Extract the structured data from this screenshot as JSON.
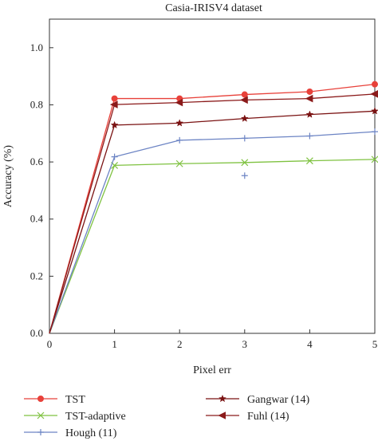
{
  "chart_data": {
    "type": "line",
    "title": "Casia-IRISV4 dataset",
    "xlabel": "Pixel err",
    "ylabel": "Accuracy (%)",
    "xlim": [
      0,
      5
    ],
    "ylim": [
      0,
      1.1
    ],
    "x_ticks": [
      "0",
      "1",
      "2",
      "3",
      "4",
      "5"
    ],
    "y_ticks": [
      "0.0",
      "0.2",
      "0.4",
      "0.6",
      "0.8",
      "1.0"
    ],
    "grid": false,
    "legend_position": "bottom",
    "x": [
      0,
      1,
      2,
      3,
      4,
      5
    ],
    "series": [
      {
        "name": "TST",
        "color": "#e8413a",
        "marker": "circle",
        "values": [
          0,
          0.822,
          0.822,
          0.836,
          0.846,
          0.872
        ]
      },
      {
        "name": "TST-adaptive",
        "color": "#7fc241",
        "marker": "x",
        "values": [
          0,
          0.588,
          0.594,
          0.598,
          0.604,
          0.609
        ]
      },
      {
        "name": "Hough (11)",
        "color": "#6c84c4",
        "marker": "plus",
        "values": [
          0,
          0.618,
          0.676,
          0.683,
          0.691,
          0.706
        ]
      },
      {
        "name": "Gangwar (14)",
        "color": "#7a1212",
        "marker": "star",
        "values": [
          0,
          0.729,
          0.736,
          0.752,
          0.766,
          0.778
        ]
      },
      {
        "name": "Fuhl (14)",
        "color": "#8b1a1a",
        "marker": "triangle-left",
        "values": [
          0,
          0.801,
          0.808,
          0.817,
          0.822,
          0.838
        ]
      }
    ],
    "outlier_points": [
      {
        "series": "Hough (11)",
        "x": 3,
        "y": 0.552
      }
    ]
  }
}
